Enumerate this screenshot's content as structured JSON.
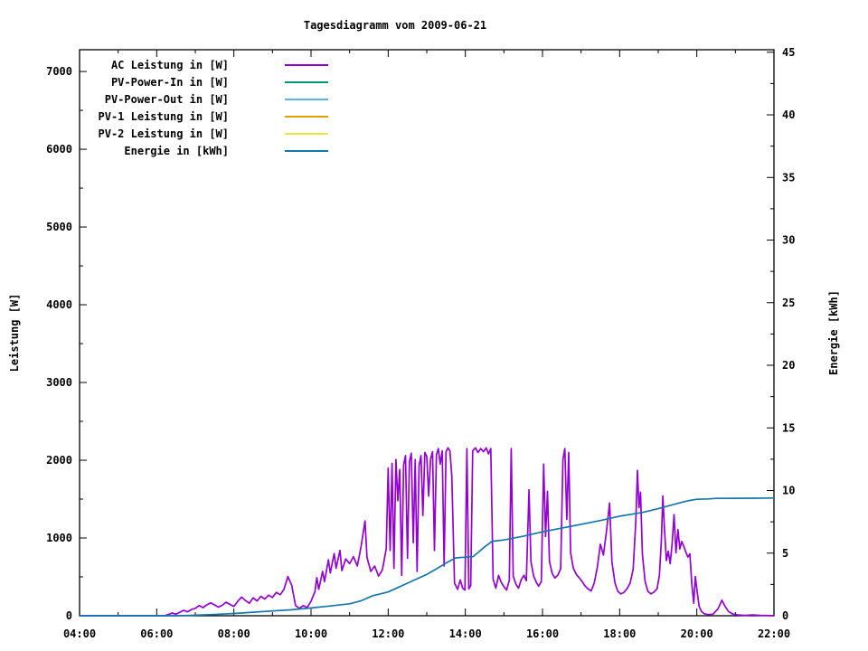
{
  "chart_data": {
    "type": "line",
    "title": "Tagesdiagramm vom 2009-06-21",
    "ylabel_left": "Leistung [W]",
    "ylabel_right": "Energie [kWh]",
    "xlabel": "",
    "grid": false,
    "legend_position": "top-left",
    "x_min": 4,
    "x_max": 22,
    "x_minor_step": 1,
    "y_left_max": 7280,
    "y_left_minor_step": 500,
    "y_right_max": 45.2,
    "y_right_minor_step": 2.5,
    "x_ticks": [
      {
        "v": 4,
        "label": "04:00"
      },
      {
        "v": 6,
        "label": "06:00"
      },
      {
        "v": 8,
        "label": "08:00"
      },
      {
        "v": 10,
        "label": "10:00"
      },
      {
        "v": 12,
        "label": "12:00"
      },
      {
        "v": 14,
        "label": "14:00"
      },
      {
        "v": 16,
        "label": "16:00"
      },
      {
        "v": 18,
        "label": "18:00"
      },
      {
        "v": 20,
        "label": "20:00"
      },
      {
        "v": 22,
        "label": "22:00"
      }
    ],
    "y_left_ticks": [
      0,
      1000,
      2000,
      3000,
      4000,
      5000,
      6000,
      7000
    ],
    "y_right_ticks": [
      0,
      5,
      10,
      15,
      20,
      25,
      30,
      35,
      40,
      45
    ],
    "series": [
      {
        "name": "AC Leistung in [W]",
        "color": "#9400D3",
        "axis": "left",
        "points": [
          [
            4.0,
            0
          ],
          [
            5.0,
            0
          ],
          [
            6.0,
            0
          ],
          [
            6.2,
            0
          ],
          [
            6.3,
            15
          ],
          [
            6.4,
            35
          ],
          [
            6.5,
            20
          ],
          [
            6.6,
            45
          ],
          [
            6.7,
            70
          ],
          [
            6.8,
            50
          ],
          [
            6.9,
            80
          ],
          [
            7.0,
            95
          ],
          [
            7.1,
            130
          ],
          [
            7.2,
            105
          ],
          [
            7.3,
            140
          ],
          [
            7.4,
            165
          ],
          [
            7.5,
            140
          ],
          [
            7.6,
            110
          ],
          [
            7.7,
            135
          ],
          [
            7.8,
            175
          ],
          [
            7.9,
            145
          ],
          [
            8.0,
            120
          ],
          [
            8.1,
            185
          ],
          [
            8.2,
            240
          ],
          [
            8.3,
            195
          ],
          [
            8.4,
            160
          ],
          [
            8.5,
            230
          ],
          [
            8.6,
            190
          ],
          [
            8.7,
            250
          ],
          [
            8.8,
            215
          ],
          [
            8.9,
            265
          ],
          [
            9.0,
            235
          ],
          [
            9.1,
            300
          ],
          [
            9.2,
            270
          ],
          [
            9.3,
            340
          ],
          [
            9.4,
            505
          ],
          [
            9.5,
            390
          ],
          [
            9.6,
            130
          ],
          [
            9.7,
            95
          ],
          [
            9.8,
            130
          ],
          [
            9.9,
            105
          ],
          [
            10.0,
            185
          ],
          [
            10.1,
            310
          ],
          [
            10.15,
            490
          ],
          [
            10.2,
            340
          ],
          [
            10.3,
            570
          ],
          [
            10.35,
            440
          ],
          [
            10.45,
            720
          ],
          [
            10.5,
            550
          ],
          [
            10.6,
            800
          ],
          [
            10.65,
            610
          ],
          [
            10.75,
            840
          ],
          [
            10.8,
            580
          ],
          [
            10.9,
            730
          ],
          [
            11.0,
            670
          ],
          [
            11.1,
            760
          ],
          [
            11.2,
            640
          ],
          [
            11.3,
            900
          ],
          [
            11.4,
            1220
          ],
          [
            11.45,
            750
          ],
          [
            11.55,
            570
          ],
          [
            11.65,
            640
          ],
          [
            11.75,
            510
          ],
          [
            11.85,
            590
          ],
          [
            11.95,
            860
          ],
          [
            12.0,
            1900
          ],
          [
            12.05,
            840
          ],
          [
            12.1,
            1960
          ],
          [
            12.15,
            610
          ],
          [
            12.2,
            2010
          ],
          [
            12.25,
            1480
          ],
          [
            12.3,
            1880
          ],
          [
            12.35,
            520
          ],
          [
            12.4,
            1940
          ],
          [
            12.45,
            2060
          ],
          [
            12.5,
            740
          ],
          [
            12.55,
            1980
          ],
          [
            12.6,
            2090
          ],
          [
            12.65,
            940
          ],
          [
            12.7,
            2010
          ],
          [
            12.75,
            570
          ],
          [
            12.8,
            1930
          ],
          [
            12.85,
            2060
          ],
          [
            12.9,
            1290
          ],
          [
            12.95,
            2100
          ],
          [
            13.0,
            2050
          ],
          [
            13.05,
            1540
          ],
          [
            13.1,
            2020
          ],
          [
            13.15,
            2110
          ],
          [
            13.2,
            840
          ],
          [
            13.25,
            2070
          ],
          [
            13.3,
            2150
          ],
          [
            13.35,
            1950
          ],
          [
            13.4,
            2120
          ],
          [
            13.45,
            640
          ],
          [
            13.5,
            2110
          ],
          [
            13.55,
            2160
          ],
          [
            13.6,
            2120
          ],
          [
            13.65,
            1800
          ],
          [
            13.72,
            420
          ],
          [
            13.8,
            340
          ],
          [
            13.87,
            460
          ],
          [
            13.93,
            355
          ],
          [
            13.99,
            330
          ],
          [
            14.04,
            2150
          ],
          [
            14.09,
            345
          ],
          [
            14.14,
            390
          ],
          [
            14.19,
            2120
          ],
          [
            14.26,
            2160
          ],
          [
            14.33,
            2100
          ],
          [
            14.4,
            2150
          ],
          [
            14.47,
            2110
          ],
          [
            14.54,
            2160
          ],
          [
            14.6,
            2080
          ],
          [
            14.66,
            2150
          ],
          [
            14.72,
            470
          ],
          [
            14.79,
            355
          ],
          [
            14.86,
            520
          ],
          [
            14.93,
            430
          ],
          [
            15.0,
            375
          ],
          [
            15.07,
            330
          ],
          [
            15.14,
            455
          ],
          [
            15.19,
            2150
          ],
          [
            15.24,
            510
          ],
          [
            15.31,
            405
          ],
          [
            15.38,
            355
          ],
          [
            15.45,
            465
          ],
          [
            15.52,
            520
          ],
          [
            15.58,
            450
          ],
          [
            15.65,
            1620
          ],
          [
            15.7,
            700
          ],
          [
            15.77,
            510
          ],
          [
            15.84,
            430
          ],
          [
            15.9,
            380
          ],
          [
            15.97,
            440
          ],
          [
            16.03,
            1950
          ],
          [
            16.08,
            1020
          ],
          [
            16.13,
            1600
          ],
          [
            16.18,
            700
          ],
          [
            16.25,
            545
          ],
          [
            16.32,
            485
          ],
          [
            16.4,
            525
          ],
          [
            16.47,
            605
          ],
          [
            16.53,
            2010
          ],
          [
            16.58,
            2150
          ],
          [
            16.63,
            1240
          ],
          [
            16.68,
            2100
          ],
          [
            16.73,
            810
          ],
          [
            16.8,
            610
          ],
          [
            16.88,
            530
          ],
          [
            16.95,
            490
          ],
          [
            17.02,
            445
          ],
          [
            17.1,
            385
          ],
          [
            17.18,
            345
          ],
          [
            17.26,
            320
          ],
          [
            17.34,
            420
          ],
          [
            17.42,
            620
          ],
          [
            17.5,
            920
          ],
          [
            17.58,
            780
          ],
          [
            17.66,
            1090
          ],
          [
            17.74,
            1450
          ],
          [
            17.8,
            690
          ],
          [
            17.88,
            420
          ],
          [
            17.95,
            315
          ],
          [
            18.03,
            280
          ],
          [
            18.11,
            300
          ],
          [
            18.19,
            345
          ],
          [
            18.27,
            420
          ],
          [
            18.35,
            600
          ],
          [
            18.42,
            1240
          ],
          [
            18.46,
            1870
          ],
          [
            18.5,
            1390
          ],
          [
            18.54,
            1590
          ],
          [
            18.59,
            790
          ],
          [
            18.66,
            440
          ],
          [
            18.73,
            315
          ],
          [
            18.81,
            280
          ],
          [
            18.89,
            305
          ],
          [
            18.97,
            345
          ],
          [
            19.03,
            520
          ],
          [
            19.08,
            950
          ],
          [
            19.12,
            1540
          ],
          [
            19.16,
            1140
          ],
          [
            19.21,
            710
          ],
          [
            19.26,
            830
          ],
          [
            19.31,
            670
          ],
          [
            19.36,
            930
          ],
          [
            19.41,
            1300
          ],
          [
            19.46,
            810
          ],
          [
            19.51,
            1110
          ],
          [
            19.56,
            860
          ],
          [
            19.61,
            955
          ],
          [
            19.66,
            895
          ],
          [
            19.71,
            825
          ],
          [
            19.77,
            755
          ],
          [
            19.82,
            795
          ],
          [
            19.87,
            415
          ],
          [
            19.92,
            160
          ],
          [
            19.96,
            505
          ],
          [
            20.01,
            305
          ],
          [
            20.06,
            125
          ],
          [
            20.12,
            55
          ],
          [
            20.2,
            25
          ],
          [
            20.3,
            15
          ],
          [
            20.42,
            20
          ],
          [
            20.55,
            90
          ],
          [
            20.65,
            200
          ],
          [
            20.72,
            130
          ],
          [
            20.82,
            55
          ],
          [
            20.92,
            25
          ],
          [
            21.05,
            10
          ],
          [
            21.25,
            5
          ],
          [
            21.45,
            10
          ],
          [
            21.65,
            5
          ],
          [
            21.85,
            3
          ],
          [
            22.0,
            0
          ]
        ]
      },
      {
        "name": "PV-Power-In in [W]",
        "color": "#00947E",
        "axis": "left",
        "points": []
      },
      {
        "name": "PV-Power-Out in [W]",
        "color": "#57B3E8",
        "axis": "left",
        "points": []
      },
      {
        "name": "PV-1 Leistung in [W]",
        "color": "#E0A100",
        "axis": "left",
        "points": []
      },
      {
        "name": "PV-2 Leistung in [W]",
        "color": "#EFE442",
        "axis": "left",
        "points": []
      },
      {
        "name": "Energie in [kWh]",
        "color": "#1576AD",
        "axis": "right",
        "points": [
          [
            4.0,
            0
          ],
          [
            6.5,
            0
          ],
          [
            6.8,
            0.02
          ],
          [
            7.0,
            0.04
          ],
          [
            7.5,
            0.1
          ],
          [
            8.0,
            0.18
          ],
          [
            8.5,
            0.28
          ],
          [
            9.0,
            0.38
          ],
          [
            9.5,
            0.48
          ],
          [
            10.0,
            0.62
          ],
          [
            10.5,
            0.78
          ],
          [
            11.0,
            0.95
          ],
          [
            11.3,
            1.2
          ],
          [
            11.6,
            1.6
          ],
          [
            11.8,
            1.75
          ],
          [
            12.0,
            1.9
          ],
          [
            12.25,
            2.25
          ],
          [
            12.5,
            2.6
          ],
          [
            12.75,
            2.95
          ],
          [
            13.0,
            3.3
          ],
          [
            13.25,
            3.75
          ],
          [
            13.5,
            4.2
          ],
          [
            13.7,
            4.55
          ],
          [
            13.75,
            4.62
          ],
          [
            14.2,
            4.72
          ],
          [
            14.35,
            5.1
          ],
          [
            14.5,
            5.5
          ],
          [
            14.7,
            5.95
          ],
          [
            15.0,
            6.05
          ],
          [
            15.5,
            6.35
          ],
          [
            16.0,
            6.7
          ],
          [
            16.5,
            7.0
          ],
          [
            17.0,
            7.3
          ],
          [
            17.5,
            7.6
          ],
          [
            18.0,
            7.95
          ],
          [
            18.3,
            8.1
          ],
          [
            18.6,
            8.25
          ],
          [
            19.0,
            8.55
          ],
          [
            19.3,
            8.8
          ],
          [
            19.6,
            9.05
          ],
          [
            19.8,
            9.2
          ],
          [
            20.0,
            9.3
          ],
          [
            20.3,
            9.33
          ],
          [
            20.5,
            9.37
          ],
          [
            21.0,
            9.38
          ],
          [
            21.5,
            9.39
          ],
          [
            22.0,
            9.4
          ]
        ]
      }
    ]
  }
}
